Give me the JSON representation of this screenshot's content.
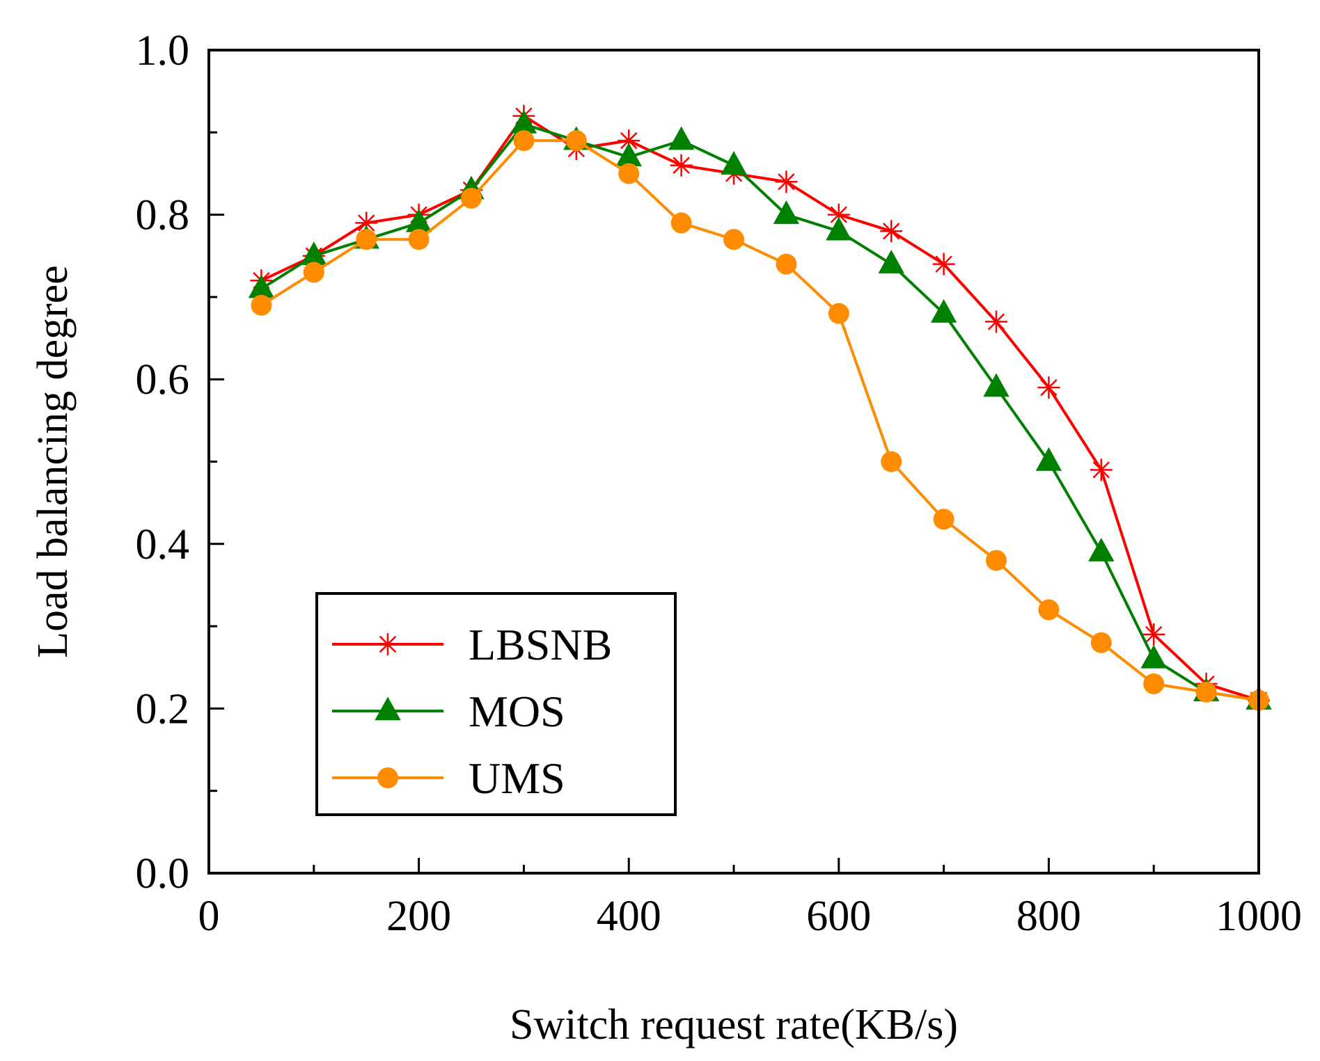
{
  "chart_data": {
    "type": "line",
    "title": "",
    "xlabel": "Switch request rate(KB/s)",
    "ylabel": "Load balancing degree",
    "xlim": [
      0,
      1000
    ],
    "ylim": [
      0.0,
      1.0
    ],
    "x_ticks": [
      0,
      200,
      400,
      600,
      800,
      1000
    ],
    "x_tick_labels": [
      "0",
      "200",
      "400",
      "600",
      "800",
      "1000"
    ],
    "y_ticks": [
      0.0,
      0.2,
      0.4,
      0.6,
      0.8,
      1.0
    ],
    "y_tick_labels": [
      "0.0",
      "0.2",
      "0.4",
      "0.6",
      "0.8",
      "1.0"
    ],
    "x_minor_ticks": [
      100,
      300,
      500,
      700,
      900
    ],
    "y_minor_ticks": [
      0.1,
      0.3,
      0.5,
      0.7,
      0.9
    ],
    "grid": false,
    "legend_position": "bottom-left",
    "x": [
      50,
      100,
      150,
      200,
      250,
      300,
      350,
      400,
      450,
      500,
      550,
      600,
      650,
      700,
      750,
      800,
      850,
      900,
      950,
      1000
    ],
    "series": [
      {
        "name": "LBSNB",
        "color": "#ff0000",
        "marker": "asterisk",
        "values": [
          0.72,
          0.75,
          0.79,
          0.8,
          0.83,
          0.92,
          0.88,
          0.89,
          0.86,
          0.85,
          0.84,
          0.8,
          0.78,
          0.74,
          0.67,
          0.59,
          0.49,
          0.29,
          0.23,
          0.21
        ]
      },
      {
        "name": "MOS",
        "color": "#008000",
        "marker": "triangle",
        "values": [
          0.71,
          0.75,
          0.77,
          0.79,
          0.83,
          0.91,
          0.89,
          0.87,
          0.89,
          0.86,
          0.8,
          0.78,
          0.74,
          0.68,
          0.59,
          0.5,
          0.39,
          0.26,
          0.22,
          0.21
        ]
      },
      {
        "name": "UMS",
        "color": "#ff8c00",
        "marker": "circle",
        "values": [
          0.69,
          0.73,
          0.77,
          0.77,
          0.82,
          0.89,
          0.89,
          0.85,
          0.79,
          0.77,
          0.74,
          0.68,
          0.5,
          0.43,
          0.38,
          0.32,
          0.28,
          0.23,
          0.22,
          0.21
        ]
      }
    ]
  }
}
